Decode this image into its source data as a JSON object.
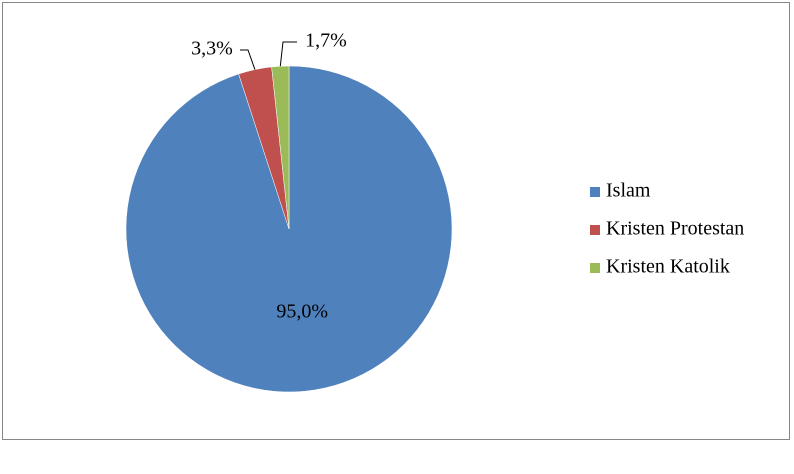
{
  "chart_data": {
    "type": "pie",
    "categories": [
      "Islam",
      "Kristen Protestan",
      "Kristen Katolik"
    ],
    "values": [
      95.0,
      3.3,
      1.7
    ],
    "value_labels": [
      "95,0%",
      "3,3%",
      "1,7%"
    ],
    "colors": [
      "#4f81bd",
      "#c0504d",
      "#9bbb59"
    ],
    "legend": "right"
  }
}
